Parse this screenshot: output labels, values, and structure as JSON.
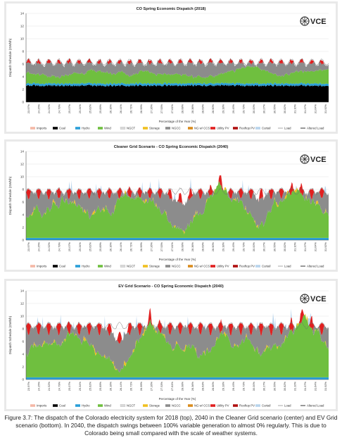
{
  "chart_data": [
    {
      "type": "area",
      "title": "CO Spring Economic Dispatch (2018)",
      "logo": "VCE",
      "xlabel": "Percentage of the Year (%)",
      "ylabel": "Dispatch Schedule (GWh/h)",
      "ylim": [
        0,
        14
      ],
      "yticks": [
        0,
        2,
        4,
        6,
        8,
        10,
        12,
        14
      ],
      "xticks": [
        "23.97%",
        "24.25%",
        "24.52%",
        "24.79%",
        "25.07%",
        "25.34%",
        "25.62%",
        "25.89%",
        "26.16%",
        "26.44%",
        "26.71%",
        "26.99%",
        "27.26%",
        "27.53%",
        "27.81%",
        "28.08%",
        "28.36%",
        "28.63%",
        "28.90%",
        "29.18%",
        "29.45%",
        "29.73%",
        "30.00%",
        "30.27%",
        "30.55%",
        "30.82%",
        "31.10%",
        "31.37%",
        "31.64%",
        "31.92%"
      ],
      "grid": true,
      "legend_position": "bottom",
      "legend": [
        "Imports",
        "Coal",
        "Hydro",
        "Wind",
        "NGCT",
        "Storage",
        "NGCC",
        "NG w/ CCS",
        "Utility PV",
        "Rooftop PV",
        "Curtail",
        "Load",
        "Altered Load"
      ],
      "profile": {
        "coal": 2.6,
        "hydro": 0.35,
        "wind": 1.6,
        "windSwing": 0.8,
        "gas": 1.3,
        "gasSwing": 0.7,
        "solar": 0.6,
        "load": 6.2,
        "peak": 6.6,
        "curtail": 0.0,
        "storage": 0.0,
        "seed": 3
      }
    },
    {
      "type": "area",
      "title": "Cleaner Grid Scenario - CO Spring Economic Dispatch (2040)",
      "logo": "VCE",
      "xlabel": "Percentage of the Year (%)",
      "ylabel": "Dispatch Schedule (GWh/h)",
      "ylim": [
        0,
        14
      ],
      "yticks": [
        0,
        2,
        4,
        6,
        8,
        10,
        12,
        14
      ],
      "xticks": [
        "23.97%",
        "24.25%",
        "24.52%",
        "24.79%",
        "25.07%",
        "25.34%",
        "25.62%",
        "25.89%",
        "26.16%",
        "26.44%",
        "26.71%",
        "26.99%",
        "27.26%",
        "27.53%",
        "27.81%",
        "28.08%",
        "28.36%",
        "28.63%",
        "28.90%",
        "29.18%",
        "29.45%",
        "29.73%",
        "30.00%",
        "30.27%",
        "30.55%",
        "30.82%",
        "31.10%",
        "31.37%",
        "31.64%",
        "31.92%"
      ],
      "grid": true,
      "legend_position": "bottom",
      "legend": [
        "Imports",
        "Coal",
        "Hydro",
        "Wind",
        "NGCT",
        "Storage",
        "NGCC",
        "NG w/ CCS",
        "Utility PV",
        "Rooftop PV",
        "Curtail",
        "Load",
        "Altered Load"
      ],
      "profile": {
        "coal": 0.0,
        "hydro": 0.35,
        "wind": 4.6,
        "windSwing": 3.2,
        "gas": 1.6,
        "gasSwing": 1.6,
        "solar": 1.6,
        "load": 7.6,
        "peak": 8.4,
        "curtail": 0.6,
        "storage": 0.5,
        "seed": 11
      }
    },
    {
      "type": "area",
      "title": "EV Grid Scenario - CO Spring Economic Dispatch (2040)",
      "logo": "VCE",
      "xlabel": "Percentage of the Year (%)",
      "ylabel": "Dispatch Schedule (GWh/h)",
      "ylim": [
        0,
        14
      ],
      "yticks": [
        0,
        2,
        4,
        6,
        8,
        10,
        12,
        14
      ],
      "xticks": [
        "23.97%",
        "24.25%",
        "24.52%",
        "24.79%",
        "25.07%",
        "25.34%",
        "25.62%",
        "25.89%",
        "26.16%",
        "26.44%",
        "26.71%",
        "26.99%",
        "27.26%",
        "27.53%",
        "27.81%",
        "28.08%",
        "28.36%",
        "28.63%",
        "28.90%",
        "29.18%",
        "29.45%",
        "29.73%",
        "30.00%",
        "30.27%",
        "30.55%",
        "30.82%",
        "31.10%",
        "31.37%",
        "31.64%",
        "31.92%"
      ],
      "grid": true,
      "legend_position": "bottom",
      "legend": [
        "Imports",
        "Coal",
        "Hydro",
        "Wind",
        "NGCT",
        "Storage",
        "NGCC",
        "NG w/ CCS",
        "Utility PV",
        "Rooftop PV",
        "Curtail",
        "Load",
        "Altered Load"
      ],
      "profile": {
        "coal": 0.0,
        "hydro": 0.35,
        "wind": 5.0,
        "windSwing": 3.4,
        "gas": 1.8,
        "gasSwing": 1.7,
        "solar": 1.9,
        "load": 8.4,
        "peak": 9.3,
        "curtail": 0.7,
        "storage": 0.6,
        "seed": 23
      }
    }
  ],
  "colors": {
    "Imports": "#f4b8a6",
    "Coal": "#000000",
    "Hydro": "#2a9fd8",
    "Wind": "#6fbf3f",
    "NGCT": "#d9d9d9",
    "Storage": "#f0c020",
    "NGCC": "#8c8c8c",
    "NG w/ CCS": "#d98c1e",
    "Utility PV": "#e02020",
    "Rooftop PV": "#b01010",
    "Curtail": "#b8d4ec",
    "Load": "#6e6e6e",
    "Altered Load": "#333333"
  },
  "caption": {
    "text": "Figure 3.7: The dispatch of the Colorado electricity system for 2018 (top), 2040 in the Cleaner Grid scenario (center) and EV Grid scenario (bottom). In 2040, the dispatch swings between 100% variable generation to almost 0% regularly. This is due to Colorado being small compared with the scale of weather systems."
  }
}
